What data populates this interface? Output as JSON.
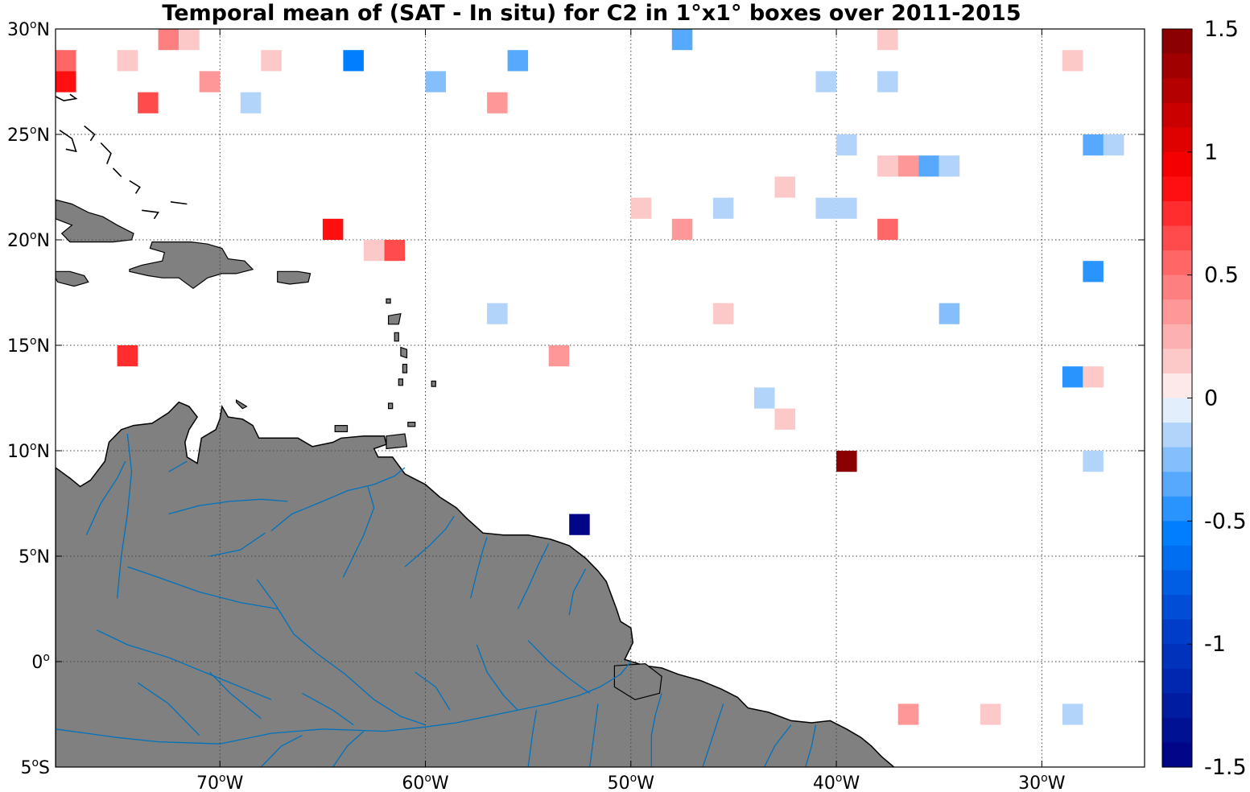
{
  "title": "Temporal mean of (SAT - In situ) for C2 in 1°x1° boxes over 2011-2015",
  "map": {
    "lon_range": [
      -78,
      -25
    ],
    "lat_range": [
      -5,
      30
    ],
    "lon_ticks": [
      {
        "value": -70,
        "num": "70",
        "hemi": "W"
      },
      {
        "value": -60,
        "num": "60",
        "hemi": "W"
      },
      {
        "value": -50,
        "num": "50",
        "hemi": "W"
      },
      {
        "value": -40,
        "num": "40",
        "hemi": "W"
      },
      {
        "value": -30,
        "num": "30",
        "hemi": "W"
      }
    ],
    "lat_ticks": [
      {
        "value": 30,
        "num": "30",
        "hemi": "N"
      },
      {
        "value": 25,
        "num": "25",
        "hemi": "N"
      },
      {
        "value": 20,
        "num": "20",
        "hemi": "N"
      },
      {
        "value": 15,
        "num": "15",
        "hemi": "N"
      },
      {
        "value": 10,
        "num": "10",
        "hemi": "N"
      },
      {
        "value": 5,
        "num": "5",
        "hemi": "N"
      },
      {
        "value": 0,
        "num": "0",
        "hemi": ""
      },
      {
        "value": -5,
        "num": "5",
        "hemi": "S"
      }
    ],
    "degree_symbol": "o",
    "gridlines": true,
    "land_color": "#808080",
    "river_color": "#0072bd",
    "coast_color": "#000000"
  },
  "colorbar": {
    "range": [
      -1.5,
      1.5
    ],
    "levels": 30,
    "ticks": [
      "1.5",
      "1",
      "0.5",
      "0",
      "-0.5",
      "-1",
      "-1.5"
    ],
    "tick_values": [
      1.5,
      1,
      0.5,
      0,
      -0.5,
      -1,
      -1.5
    ],
    "colormap": "blue-white-red",
    "position": "right"
  },
  "chart_data": {
    "type": "heatmap",
    "title": "Temporal mean of (SAT - In situ) for C2 in 1°x1° boxes over 2011-2015",
    "xlabel": "",
    "ylabel": "",
    "x_range": [
      -78,
      -25
    ],
    "y_range": [
      -5,
      30
    ],
    "cells": [
      {
        "lon": -72.5,
        "lat": 29.5,
        "value": 0.4
      },
      {
        "lon": -71.5,
        "lat": 29.5,
        "value": 0.15
      },
      {
        "lon": -47.5,
        "lat": 29.5,
        "value": -0.35
      },
      {
        "lon": -37.5,
        "lat": 29.5,
        "value": 0.15
      },
      {
        "lon": -77.5,
        "lat": 28.5,
        "value": 0.55
      },
      {
        "lon": -74.5,
        "lat": 28.5,
        "value": 0.15
      },
      {
        "lon": -67.5,
        "lat": 28.5,
        "value": 0.15
      },
      {
        "lon": -63.5,
        "lat": 28.5,
        "value": -0.6
      },
      {
        "lon": -55.5,
        "lat": 28.5,
        "value": -0.3
      },
      {
        "lon": -28.5,
        "lat": 28.5,
        "value": 0.15
      },
      {
        "lon": -77.5,
        "lat": 27.5,
        "value": 0.8
      },
      {
        "lon": -70.5,
        "lat": 27.5,
        "value": 0.35
      },
      {
        "lon": -59.5,
        "lat": 27.5,
        "value": -0.25
      },
      {
        "lon": -40.5,
        "lat": 27.5,
        "value": -0.15
      },
      {
        "lon": -37.5,
        "lat": 27.5,
        "value": -0.15
      },
      {
        "lon": -73.5,
        "lat": 26.5,
        "value": 0.6
      },
      {
        "lon": -68.5,
        "lat": 26.5,
        "value": -0.15
      },
      {
        "lon": -56.5,
        "lat": 26.5,
        "value": 0.3
      },
      {
        "lon": -39.5,
        "lat": 24.5,
        "value": -0.15
      },
      {
        "lon": -27.5,
        "lat": 24.5,
        "value": -0.3
      },
      {
        "lon": -26.5,
        "lat": 24.5,
        "value": -0.15
      },
      {
        "lon": -37.5,
        "lat": 23.5,
        "value": 0.15
      },
      {
        "lon": -36.5,
        "lat": 23.5,
        "value": 0.35
      },
      {
        "lon": -35.5,
        "lat": 23.5,
        "value": -0.3
      },
      {
        "lon": -34.5,
        "lat": 23.5,
        "value": -0.15
      },
      {
        "lon": -42.5,
        "lat": 22.5,
        "value": 0.15
      },
      {
        "lon": -49.5,
        "lat": 21.5,
        "value": 0.15
      },
      {
        "lon": -45.5,
        "lat": 21.5,
        "value": -0.15
      },
      {
        "lon": -40.5,
        "lat": 21.5,
        "value": -0.15
      },
      {
        "lon": -39.5,
        "lat": 21.5,
        "value": -0.15
      },
      {
        "lon": -64.5,
        "lat": 20.5,
        "value": 0.8
      },
      {
        "lon": -47.5,
        "lat": 20.5,
        "value": 0.35
      },
      {
        "lon": -37.5,
        "lat": 20.5,
        "value": 0.55
      },
      {
        "lon": -62.5,
        "lat": 19.5,
        "value": 0.15
      },
      {
        "lon": -61.5,
        "lat": 19.5,
        "value": 0.6
      },
      {
        "lon": -27.5,
        "lat": 18.5,
        "value": -0.45
      },
      {
        "lon": -56.5,
        "lat": 16.5,
        "value": -0.15
      },
      {
        "lon": -45.5,
        "lat": 16.5,
        "value": 0.15
      },
      {
        "lon": -34.5,
        "lat": 16.5,
        "value": -0.25
      },
      {
        "lon": -74.5,
        "lat": 14.5,
        "value": 0.7
      },
      {
        "lon": -53.5,
        "lat": 14.5,
        "value": 0.3
      },
      {
        "lon": -28.5,
        "lat": 13.5,
        "value": -0.45
      },
      {
        "lon": -27.5,
        "lat": 13.5,
        "value": 0.15
      },
      {
        "lon": -43.5,
        "lat": 12.5,
        "value": -0.15
      },
      {
        "lon": -42.5,
        "lat": 11.5,
        "value": 0.15
      },
      {
        "lon": -39.5,
        "lat": 9.5,
        "value": 1.5
      },
      {
        "lon": -27.5,
        "lat": 9.5,
        "value": -0.15
      },
      {
        "lon": -52.5,
        "lat": 6.5,
        "value": -1.5
      },
      {
        "lon": -36.5,
        "lat": -2.5,
        "value": 0.3
      },
      {
        "lon": -32.5,
        "lat": -2.5,
        "value": 0.15
      },
      {
        "lon": -28.5,
        "lat": -2.5,
        "value": -0.15
      }
    ]
  }
}
